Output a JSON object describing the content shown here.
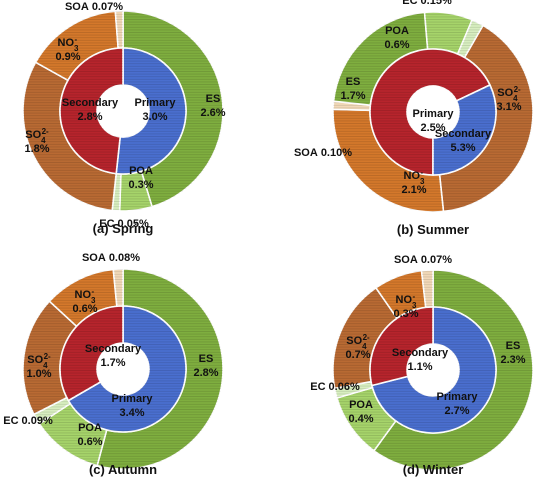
{
  "colors": {
    "primary": "#4A6FCF",
    "secondary": "#B7242C",
    "es": "#7FAE3F",
    "poa": "#A6D46A",
    "ec": "#D8EFC0",
    "soa": "#F2D9B8",
    "no3": "#D4782B",
    "so4": "#B96A33"
  },
  "chart_data": [
    {
      "type": "pie",
      "caption": "(a) Spring",
      "inner": [
        {
          "name": "Primary",
          "value_label": "3.0%",
          "value": 3.0
        },
        {
          "name": "Secondary",
          "value_label": "2.8%",
          "value": 2.8
        }
      ],
      "outer": [
        {
          "name": "ES",
          "value_label": "2.6%",
          "value": 2.6
        },
        {
          "name": "POA",
          "value_label": "0.3%",
          "value": 0.3
        },
        {
          "name": "EC",
          "value_label": "0.05%",
          "value": 0.05
        },
        {
          "name": "SO4",
          "sup": "2-",
          "value_label": "1.8%",
          "value": 1.8
        },
        {
          "name": "NO3",
          "sup": "-",
          "value_label": "0.9%",
          "value": 0.9
        },
        {
          "name": "SOA",
          "value_label": "0.07%",
          "value": 0.07
        }
      ]
    },
    {
      "type": "pie",
      "caption": "(b) Summer",
      "inner": [
        {
          "name": "Secondary",
          "value_label": "5.3%",
          "value": 5.3
        },
        {
          "name": "Primary",
          "value_label": "2.5%",
          "value": 2.5
        }
      ],
      "outer": [
        {
          "name": "SO4",
          "sup": "2-",
          "value_label": "3.1%",
          "value": 3.1
        },
        {
          "name": "NO3",
          "sup": "-",
          "value_label": "2.1%",
          "value": 2.1
        },
        {
          "name": "SOA",
          "value_label": "0.10%",
          "value": 0.1
        },
        {
          "name": "ES",
          "value_label": "1.7%",
          "value": 1.7
        },
        {
          "name": "POA",
          "value_label": "0.6%",
          "value": 0.6
        },
        {
          "name": "EC",
          "value_label": "0.15%",
          "value": 0.15
        }
      ]
    },
    {
      "type": "pie",
      "caption": "(c) Autumn",
      "inner": [
        {
          "name": "Primary",
          "value_label": "3.4%",
          "value": 3.4
        },
        {
          "name": "Secondary",
          "value_label": "1.7%",
          "value": 1.7
        }
      ],
      "outer": [
        {
          "name": "ES",
          "value_label": "2.8%",
          "value": 2.8
        },
        {
          "name": "POA",
          "value_label": "0.6%",
          "value": 0.6
        },
        {
          "name": "EC",
          "value_label": "0.09%",
          "value": 0.09
        },
        {
          "name": "SO4",
          "sup": "2-",
          "value_label": "1.0%",
          "value": 1.0
        },
        {
          "name": "NO3",
          "sup": "-",
          "value_label": "0.6%",
          "value": 0.6
        },
        {
          "name": "SOA",
          "value_label": "0.08%",
          "value": 0.08
        }
      ]
    },
    {
      "type": "pie",
      "caption": "(d) Winter",
      "inner": [
        {
          "name": "Primary",
          "value_label": "2.7%",
          "value": 2.7
        },
        {
          "name": "Secondary",
          "value_label": "1.1%",
          "value": 1.1
        }
      ],
      "outer": [
        {
          "name": "ES",
          "value_label": "2.3%",
          "value": 2.3
        },
        {
          "name": "POA",
          "value_label": "0.4%",
          "value": 0.4
        },
        {
          "name": "EC",
          "value_label": "0.06%",
          "value": 0.06
        },
        {
          "name": "SO4",
          "sup": "2-",
          "value_label": "0.7%",
          "value": 0.7
        },
        {
          "name": "NO3",
          "sup": "-",
          "value_label": "0.3%",
          "value": 0.3
        },
        {
          "name": "SOA",
          "value_label": "0.07%",
          "value": 0.07
        }
      ]
    }
  ]
}
